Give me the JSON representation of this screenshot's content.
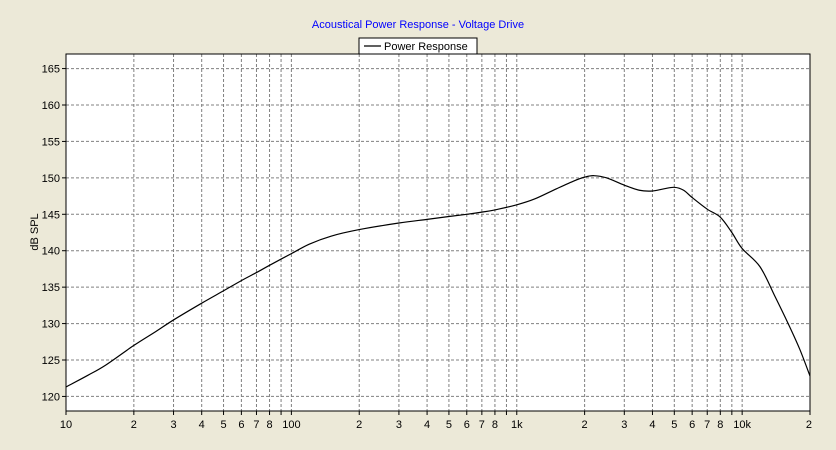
{
  "chart_data": {
    "type": "line",
    "title": "Acoustical Power Response - Voltage Drive",
    "xlabel": "",
    "ylabel": "dB SPL",
    "x_scale": "log",
    "xlim": [
      10,
      20000
    ],
    "ylim": [
      118,
      167
    ],
    "grid": true,
    "legend_position": "top-center",
    "x_ticks": [
      {
        "value": 10,
        "label": "10"
      },
      {
        "value": 20,
        "label": "2"
      },
      {
        "value": 30,
        "label": "3"
      },
      {
        "value": 40,
        "label": "4"
      },
      {
        "value": 50,
        "label": "5"
      },
      {
        "value": 60,
        "label": "6"
      },
      {
        "value": 70,
        "label": "7"
      },
      {
        "value": 80,
        "label": "8"
      },
      {
        "value": 100,
        "label": "100"
      },
      {
        "value": 200,
        "label": "2"
      },
      {
        "value": 300,
        "label": "3"
      },
      {
        "value": 400,
        "label": "4"
      },
      {
        "value": 500,
        "label": "5"
      },
      {
        "value": 600,
        "label": "6"
      },
      {
        "value": 700,
        "label": "7"
      },
      {
        "value": 800,
        "label": "8"
      },
      {
        "value": 1000,
        "label": "1k"
      },
      {
        "value": 2000,
        "label": "2"
      },
      {
        "value": 3000,
        "label": "3"
      },
      {
        "value": 4000,
        "label": "4"
      },
      {
        "value": 5000,
        "label": "5"
      },
      {
        "value": 6000,
        "label": "6"
      },
      {
        "value": 7000,
        "label": "7"
      },
      {
        "value": 8000,
        "label": "8"
      },
      {
        "value": 10000,
        "label": "10k"
      },
      {
        "value": 20000,
        "label": "2"
      }
    ],
    "x_minor_grid": [
      90,
      900,
      9000
    ],
    "y_ticks": [
      120,
      125,
      130,
      135,
      140,
      145,
      150,
      155,
      160,
      165
    ],
    "series": [
      {
        "name": "Power Response",
        "color": "#000000",
        "x": [
          10,
          12.5,
          15,
          20,
          25,
          30,
          40,
          50,
          60,
          70,
          80,
          100,
          120,
          150,
          200,
          300,
          400,
          500,
          600,
          700,
          800,
          1000,
          1200,
          1500,
          1800,
          2000,
          2200,
          2500,
          3000,
          3500,
          4000,
          4500,
          5000,
          5500,
          6000,
          7000,
          8000,
          9000,
          10000,
          12000,
          14000,
          16000,
          18000,
          20000
        ],
        "y": [
          121.3,
          122.9,
          124.3,
          127.0,
          128.9,
          130.5,
          132.8,
          134.5,
          135.9,
          137.0,
          138.0,
          139.6,
          140.9,
          142.0,
          142.9,
          143.8,
          144.3,
          144.7,
          145.0,
          145.3,
          145.6,
          146.3,
          147.1,
          148.5,
          149.6,
          150.1,
          150.3,
          150.0,
          149.0,
          148.3,
          148.2,
          148.5,
          148.7,
          148.3,
          147.3,
          145.7,
          144.6,
          142.5,
          140.3,
          137.8,
          133.7,
          130.0,
          126.5,
          122.8
        ]
      }
    ]
  }
}
